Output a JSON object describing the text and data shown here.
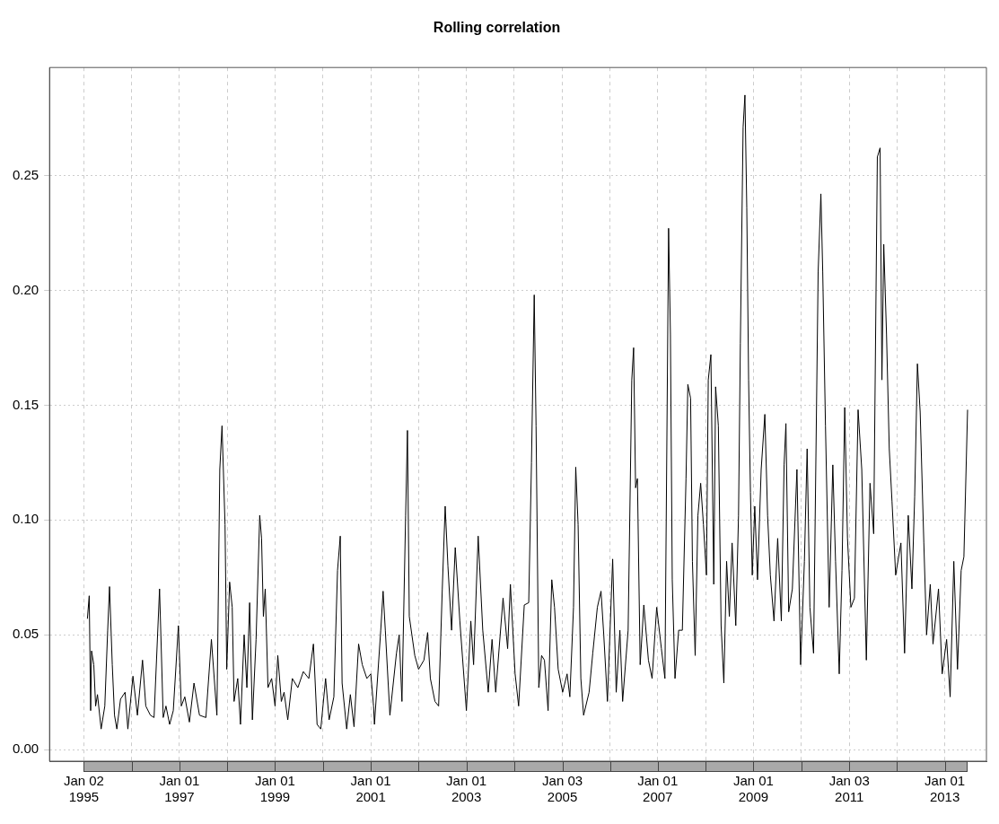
{
  "chart_data": {
    "type": "line",
    "title": "Rolling correlation",
    "x": [
      "1995-01-29",
      "1995-02-12",
      "1995-02-23",
      "1995-03-02",
      "1995-03-19",
      "1995-04-02",
      "1995-04-16",
      "1995-05-14",
      "1995-06-11",
      "1995-07-03",
      "1995-07-17",
      "1995-08-07",
      "1995-08-24",
      "1995-09-11",
      "1995-10-09",
      "1995-11-13",
      "1995-12-04",
      "1996-01-12",
      "1996-02-15",
      "1996-03-25",
      "1996-04-19",
      "1996-05-24",
      "1996-06-21",
      "1996-08-02",
      "1996-08-30",
      "1996-09-20",
      "1996-10-18",
      "1996-11-15",
      "1996-12-24",
      "1997-01-15",
      "1997-02-11",
      "1997-03-18",
      "1997-04-22",
      "1997-06-03",
      "1997-07-22",
      "1997-09-02",
      "1997-10-14",
      "1997-11-05",
      "1997-11-22",
      "1997-12-15",
      "1997-12-28",
      "1998-01-19",
      "1998-02-08",
      "1998-02-22",
      "1998-03-22",
      "1998-04-12",
      "1998-05-10",
      "1998-05-31",
      "1998-06-21",
      "1998-07-12",
      "1998-08-09",
      "1998-09-06",
      "1998-09-20",
      "1998-10-04",
      "1998-10-18",
      "1998-11-08",
      "1998-12-06",
      "1999-01-01",
      "1999-01-22",
      "1999-02-18",
      "1999-03-11",
      "1999-04-08",
      "1999-05-13",
      "1999-06-24",
      "1999-08-05",
      "1999-09-16",
      "1999-10-21",
      "1999-11-18",
      "1999-12-16",
      "2000-01-22",
      "2000-02-18",
      "2000-03-25",
      "2000-04-22",
      "2000-05-13",
      "2000-05-27",
      "2000-07-01",
      "2000-07-29",
      "2000-08-26",
      "2000-09-30",
      "2000-10-28",
      "2000-12-02",
      "2001-01-01",
      "2001-01-22",
      "2001-01-29",
      "2001-03-18",
      "2001-04-05",
      "2001-04-22",
      "2001-05-27",
      "2001-07-16",
      "2001-08-06",
      "2001-08-27",
      "2001-09-24",
      "2001-10-08",
      "2001-10-22",
      "2001-12-03",
      "2002-01-01",
      "2002-02-11",
      "2002-03-11",
      "2002-04-01",
      "2002-05-06",
      "2002-06-03",
      "2002-07-01",
      "2002-07-23",
      "2002-08-13",
      "2002-09-10",
      "2002-10-08",
      "2002-11-12",
      "2003-01-01",
      "2003-02-04",
      "2003-02-25",
      "2003-04-01",
      "2003-05-06",
      "2003-06-17",
      "2003-07-16",
      "2003-08-13",
      "2003-10-08",
      "2003-11-12",
      "2003-12-03",
      "2004-01-08",
      "2004-02-04",
      "2004-03-18",
      "2004-04-21",
      "2004-05-12",
      "2004-06-02",
      "2004-06-16",
      "2004-07-07",
      "2004-07-28",
      "2004-08-19",
      "2004-09-16",
      "2004-10-14",
      "2004-11-04",
      "2004-12-02",
      "2005-01-05",
      "2005-02-08",
      "2005-03-01",
      "2005-03-29",
      "2005-04-15",
      "2005-05-03",
      "2005-05-24",
      "2005-06-14",
      "2005-07-26",
      "2005-08-23",
      "2005-09-27",
      "2005-10-25",
      "2005-11-15",
      "2005-12-13",
      "2006-01-22",
      "2006-02-18",
      "2006-03-18",
      "2006-04-08",
      "2006-05-20",
      "2006-06-17",
      "2006-07-01",
      "2006-07-16",
      "2006-07-30",
      "2006-08-20",
      "2006-09-17",
      "2006-10-22",
      "2006-11-19",
      "2006-12-24",
      "2007-01-29",
      "2007-02-25",
      "2007-03-25",
      "2007-04-08",
      "2007-04-22",
      "2007-05-13",
      "2007-06-10",
      "2007-07-08",
      "2007-08-05",
      "2007-08-19",
      "2007-09-09",
      "2007-09-23",
      "2007-10-14",
      "2007-11-04",
      "2007-11-25",
      "2007-12-16",
      "2008-01-08",
      "2008-01-22",
      "2008-02-11",
      "2008-03-04",
      "2008-03-18",
      "2008-04-08",
      "2008-04-29",
      "2008-05-20",
      "2008-06-10",
      "2008-07-01",
      "2008-07-22",
      "2008-08-19",
      "2008-09-09",
      "2008-09-23",
      "2008-10-14",
      "2008-10-28",
      "2008-11-11",
      "2008-11-25",
      "2008-12-09",
      "2008-12-23",
      "2009-01-11",
      "2009-02-01",
      "2009-03-01",
      "2009-03-29",
      "2009-04-19",
      "2009-05-10",
      "2009-06-07",
      "2009-07-05",
      "2009-08-02",
      "2009-08-23",
      "2009-09-06",
      "2009-09-27",
      "2009-10-25",
      "2009-11-29",
      "2009-12-27",
      "2010-01-25",
      "2010-02-15",
      "2010-03-08",
      "2010-04-05",
      "2010-05-10",
      "2010-05-31",
      "2010-06-14",
      "2010-07-05",
      "2010-08-02",
      "2010-08-30",
      "2010-09-20",
      "2010-10-18",
      "2010-11-08",
      "2010-11-29",
      "2010-12-20",
      "2011-01-15",
      "2011-02-11",
      "2011-03-11",
      "2011-04-08",
      "2011-05-13",
      "2011-06-10",
      "2011-07-08",
      "2011-08-05",
      "2011-08-26",
      "2011-09-09",
      "2011-09-23",
      "2011-10-14",
      "2011-11-04",
      "2011-11-25",
      "2011-12-23",
      "2012-02-01",
      "2012-02-29",
      "2012-03-28",
      "2012-04-25",
      "2012-05-16",
      "2012-06-06",
      "2012-06-27",
      "2012-07-25",
      "2012-08-15",
      "2012-09-12",
      "2012-10-03",
      "2012-11-14",
      "2012-12-12",
      "2013-01-15",
      "2013-02-11",
      "2013-03-11",
      "2013-04-08",
      "2013-05-06",
      "2013-05-27",
      "2013-06-24"
    ],
    "series": [
      {
        "color": "#000000",
        "values": [
          0.057,
          0.067,
          0.017,
          0.043,
          0.037,
          0.019,
          0.024,
          0.009,
          0.019,
          0.052,
          0.071,
          0.037,
          0.015,
          0.009,
          0.022,
          0.025,
          0.009,
          0.032,
          0.015,
          0.039,
          0.019,
          0.015,
          0.014,
          0.07,
          0.014,
          0.019,
          0.011,
          0.017,
          0.054,
          0.019,
          0.023,
          0.012,
          0.029,
          0.015,
          0.014,
          0.048,
          0.015,
          0.122,
          0.141,
          0.098,
          0.035,
          0.073,
          0.062,
          0.021,
          0.031,
          0.011,
          0.05,
          0.027,
          0.064,
          0.013,
          0.048,
          0.102,
          0.092,
          0.058,
          0.07,
          0.027,
          0.031,
          0.019,
          0.041,
          0.021,
          0.025,
          0.013,
          0.031,
          0.027,
          0.034,
          0.031,
          0.046,
          0.011,
          0.009,
          0.031,
          0.013,
          0.023,
          0.078,
          0.093,
          0.029,
          0.009,
          0.024,
          0.01,
          0.046,
          0.037,
          0.031,
          0.033,
          0.019,
          0.011,
          0.052,
          0.069,
          0.052,
          0.015,
          0.042,
          0.05,
          0.021,
          0.102,
          0.139,
          0.058,
          0.041,
          0.035,
          0.039,
          0.051,
          0.031,
          0.021,
          0.019,
          0.07,
          0.106,
          0.08,
          0.052,
          0.088,
          0.056,
          0.017,
          0.056,
          0.037,
          0.093,
          0.052,
          0.025,
          0.048,
          0.025,
          0.066,
          0.044,
          0.072,
          0.033,
          0.019,
          0.063,
          0.064,
          0.125,
          0.198,
          0.141,
          0.027,
          0.041,
          0.039,
          0.017,
          0.074,
          0.062,
          0.035,
          0.025,
          0.033,
          0.023,
          0.062,
          0.123,
          0.098,
          0.031,
          0.015,
          0.025,
          0.042,
          0.062,
          0.069,
          0.05,
          0.021,
          0.083,
          0.025,
          0.052,
          0.021,
          0.052,
          0.161,
          0.175,
          0.114,
          0.118,
          0.037,
          0.063,
          0.039,
          0.031,
          0.062,
          0.044,
          0.031,
          0.227,
          0.181,
          0.074,
          0.031,
          0.052,
          0.052,
          0.118,
          0.159,
          0.153,
          0.082,
          0.041,
          0.102,
          0.116,
          0.098,
          0.076,
          0.161,
          0.172,
          0.072,
          0.158,
          0.141,
          0.054,
          0.029,
          0.082,
          0.058,
          0.09,
          0.054,
          0.102,
          0.177,
          0.271,
          0.285,
          0.236,
          0.161,
          0.112,
          0.076,
          0.106,
          0.074,
          0.122,
          0.146,
          0.102,
          0.076,
          0.056,
          0.092,
          0.056,
          0.124,
          0.142,
          0.06,
          0.07,
          0.122,
          0.037,
          0.082,
          0.131,
          0.062,
          0.042,
          0.208,
          0.242,
          0.208,
          0.141,
          0.062,
          0.124,
          0.082,
          0.033,
          0.078,
          0.149,
          0.092,
          0.062,
          0.066,
          0.148,
          0.122,
          0.039,
          0.116,
          0.094,
          0.258,
          0.262,
          0.161,
          0.22,
          0.181,
          0.131,
          0.108,
          0.076,
          0.09,
          0.042,
          0.102,
          0.07,
          0.11,
          0.168,
          0.147,
          0.09,
          0.05,
          0.072,
          0.046,
          0.07,
          0.033,
          0.048,
          0.023,
          0.082,
          0.035,
          0.078,
          0.084,
          0.148
        ]
      }
    ],
    "xlim": [
      "1994-04-15",
      "2013-11-15"
    ],
    "xticks": [
      {
        "value": "1995-01-02",
        "label": "Jan 02\n1995"
      },
      {
        "value": "1996-01-01",
        "label": null
      },
      {
        "value": "1997-01-01",
        "label": "Jan 01\n1997"
      },
      {
        "value": "1998-01-01",
        "label": null
      },
      {
        "value": "1999-01-01",
        "label": "Jan 01\n1999"
      },
      {
        "value": "2000-01-01",
        "label": null
      },
      {
        "value": "2001-01-01",
        "label": "Jan 01\n2001"
      },
      {
        "value": "2002-01-01",
        "label": null
      },
      {
        "value": "2003-01-01",
        "label": "Jan 01\n2003"
      },
      {
        "value": "2004-01-01",
        "label": null
      },
      {
        "value": "2005-01-03",
        "label": "Jan 03\n2005"
      },
      {
        "value": "2006-01-01",
        "label": null
      },
      {
        "value": "2007-01-01",
        "label": "Jan 01\n2007"
      },
      {
        "value": "2008-01-01",
        "label": null
      },
      {
        "value": "2009-01-01",
        "label": "Jan 01\n2009"
      },
      {
        "value": "2010-01-01",
        "label": null
      },
      {
        "value": "2011-01-03",
        "label": "Jan 03\n2011"
      },
      {
        "value": "2012-01-01",
        "label": null
      },
      {
        "value": "2013-01-01",
        "label": "Jan 01\n2013"
      }
    ],
    "ylim": [
      -0.005,
      0.297
    ],
    "yticks": [
      {
        "value": 0,
        "label": "0.00"
      },
      {
        "value": 0.05,
        "label": "0.05"
      },
      {
        "value": 0.1,
        "label": "0.10"
      },
      {
        "value": 0.15,
        "label": "0.15"
      },
      {
        "value": 0.2,
        "label": "0.20"
      },
      {
        "value": 0.25,
        "label": "0.25"
      }
    ],
    "grid": true,
    "marker": "none",
    "line_style": "solid"
  }
}
